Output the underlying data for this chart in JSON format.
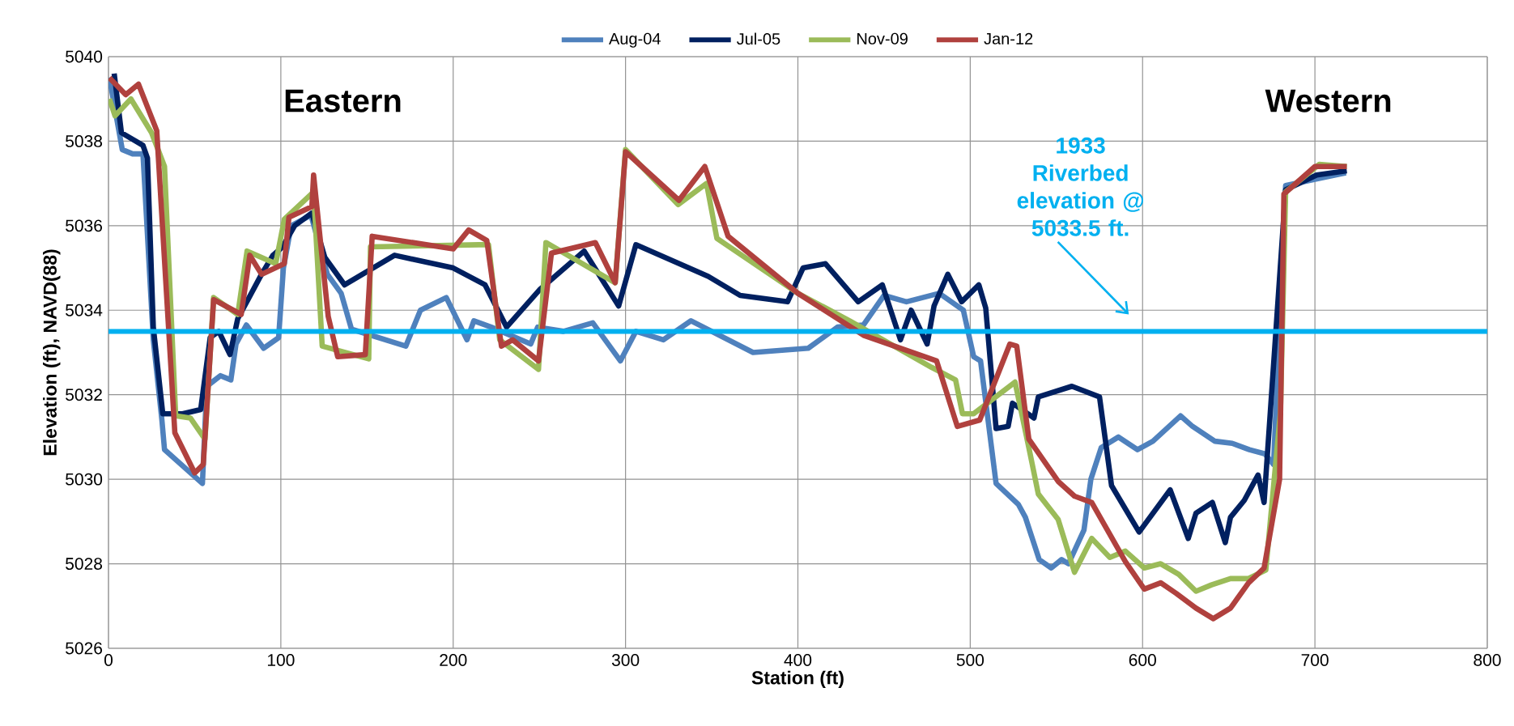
{
  "chart_data": {
    "type": "line",
    "xlabel": "Station (ft)",
    "ylabel": "Elevation (ft), NAVD(88)",
    "xlim": [
      0,
      800
    ],
    "xticks": [
      0,
      100,
      200,
      300,
      400,
      500,
      600,
      700,
      800
    ],
    "ylim": [
      5026,
      5040
    ],
    "yticks": [
      5026,
      5028,
      5030,
      5032,
      5034,
      5036,
      5038,
      5040
    ],
    "grid": true,
    "legend": "top",
    "marker": "none",
    "line_style": "solid",
    "annotations": [
      "Eastern",
      "Western"
    ],
    "ref_lines": [
      {
        "axis": "y",
        "value": 5033.5,
        "label": "1933 Riverbed elevation @ 5033.5 ft.",
        "color": "#00b0f0"
      }
    ],
    "series": [
      {
        "name": "Aug-04",
        "color": "#4f81bd",
        "x": [
          0,
          1.4,
          8,
          14,
          20,
          26,
          31,
          32.5,
          54.5,
          57,
          65,
          71,
          74,
          80,
          90,
          98.7,
          101.5,
          106,
          117.5,
          127,
          135,
          141,
          172.5,
          181,
          196,
          208,
          212,
          222,
          245,
          249,
          264,
          281,
          297,
          306,
          322,
          338,
          374,
          406,
          423,
          438,
          450,
          463,
          482,
          496,
          502,
          506,
          515,
          528,
          532,
          540,
          547,
          553,
          557,
          566,
          570,
          576,
          586,
          597,
          606,
          622,
          629,
          642,
          652,
          662,
          671,
          676,
          683,
          700,
          718
        ],
        "values": [
          5039.5,
          5039.3,
          5037.8,
          5037.7,
          5037.7,
          5033.3,
          5031.4,
          5030.7,
          5029.9,
          5032.2,
          5032.45,
          5032.35,
          5033.2,
          5033.65,
          5033.1,
          5033.35,
          5035.0,
          5036.0,
          5036.25,
          5034.85,
          5034.4,
          5033.55,
          5033.15,
          5034.0,
          5034.3,
          5033.3,
          5033.75,
          5033.6,
          5033.2,
          5033.6,
          5033.5,
          5033.7,
          5032.8,
          5033.5,
          5033.3,
          5033.75,
          5033.0,
          5033.1,
          5033.6,
          5033.65,
          5034.35,
          5034.2,
          5034.4,
          5034.0,
          5032.9,
          5032.8,
          5029.9,
          5029.4,
          5029.1,
          5028.1,
          5027.9,
          5028.1,
          5028.0,
          5028.8,
          5030.0,
          5030.75,
          5031.0,
          5030.7,
          5030.9,
          5031.5,
          5031.25,
          5030.9,
          5030.85,
          5030.7,
          5030.6,
          5030.35,
          5036.95,
          5037.1,
          5037.25
        ]
      },
      {
        "name": "Jul-05",
        "color": "#002060",
        "x": [
          3.3,
          7.5,
          20,
          22.6,
          26,
          31.5,
          43,
          53.5,
          59,
          64,
          70.5,
          75,
          80.4,
          88.8,
          95.4,
          101,
          108,
          118,
          125.5,
          137,
          166,
          200,
          218.5,
          231,
          250.5,
          276,
          296,
          306,
          348,
          366.5,
          394,
          403,
          416,
          435,
          449,
          459.5,
          465.7,
          475,
          479,
          487,
          495,
          505,
          509,
          515,
          522,
          524.5,
          537,
          539.5,
          559,
          575,
          582,
          598,
          616,
          626.5,
          631,
          640.5,
          648,
          651,
          659,
          667,
          670.5,
          679.5,
          683,
          701,
          718.5
        ],
        "values": [
          5039.6,
          5038.2,
          5037.9,
          5037.6,
          5033.6,
          5031.55,
          5031.55,
          5031.65,
          5033.35,
          5033.5,
          5032.95,
          5033.8,
          null,
          5034.85,
          5035.3,
          5035.5,
          5036.0,
          5036.3,
          5035.25,
          5034.6,
          5035.3,
          5035.0,
          5034.6,
          5033.6,
          5034.5,
          5035.4,
          5034.1,
          5035.55,
          5034.8,
          5034.35,
          5034.2,
          5035.0,
          5035.1,
          5034.2,
          5034.6,
          5033.3,
          5034.0,
          5033.2,
          5034.1,
          5034.85,
          5034.2,
          5034.6,
          5034.05,
          5031.2,
          5031.25,
          5031.8,
          5031.45,
          5031.95,
          5032.2,
          5031.95,
          5029.85,
          5028.75,
          5029.75,
          5028.6,
          5029.2,
          5029.45,
          5028.5,
          5029.1,
          5029.5,
          5030.1,
          5029.45,
          null,
          5036.85,
          5037.2,
          5037.3
        ]
      },
      {
        "name": "Nov-09",
        "color": "#9bbb59",
        "x": [
          0.5,
          3.8,
          13,
          25,
          32.5,
          39,
          47.5,
          56,
          61,
          75,
          80.4,
          97,
          102,
          119,
          124,
          151,
          152,
          215,
          220.5,
          227,
          249.5,
          253.8,
          294,
          300,
          330.5,
          347,
          353,
          400,
          430,
          477.5,
          491.5,
          495.5,
          502,
          526,
          534,
          539.5,
          551,
          560.5,
          570.5,
          581,
          590,
          601,
          610.5,
          621,
          631,
          640,
          651,
          661.5,
          671.5,
          680,
          683,
          702.5,
          718.5
        ],
        "values": [
          5039.0,
          5038.6,
          5039.0,
          5038.2,
          5037.4,
          5031.5,
          5031.45,
          5030.95,
          5034.3,
          5033.9,
          5035.4,
          5035.1,
          5036.15,
          5036.8,
          5033.15,
          5032.85,
          5035.5,
          5035.55,
          5035.55,
          5033.3,
          5032.6,
          5035.6,
          5034.65,
          5037.8,
          5036.5,
          5037.0,
          5035.7,
          5034.4,
          5033.75,
          5032.65,
          5032.35,
          5031.55,
          5031.55,
          5032.3,
          5030.75,
          5029.65,
          5029.05,
          5027.8,
          5028.6,
          5028.15,
          5028.3,
          5027.9,
          5028.0,
          5027.75,
          5027.35,
          5027.5,
          5027.65,
          5027.65,
          5027.85,
          5031.6,
          5036.8,
          5037.45,
          5037.4
        ]
      },
      {
        "name": "Jan-12",
        "color": "#b0413e",
        "x": [
          0.5,
          10,
          17.4,
          28,
          38.5,
          50,
          55,
          61,
          77,
          82,
          88.8,
          102,
          104.7,
          118,
          119,
          127.5,
          133,
          149,
          153,
          200,
          209,
          219.5,
          228,
          234.5,
          249.5,
          257,
          282.5,
          294,
          300,
          331,
          346,
          359.5,
          400,
          438.5,
          480.5,
          492.5,
          505.5,
          523,
          527,
          534,
          551,
          560.5,
          570.5,
          590,
          601,
          610.5,
          619.5,
          631,
          641,
          651,
          661.5,
          670.5,
          679.5,
          682,
          700,
          718.5
        ],
        "values": [
          5039.5,
          5039.1,
          5039.35,
          5038.25,
          5031.1,
          5030.15,
          5030.35,
          5034.25,
          5033.9,
          5035.3,
          5034.85,
          5035.1,
          5036.2,
          5036.45,
          5037.2,
          5033.85,
          5032.9,
          5032.95,
          5035.75,
          5035.45,
          5035.9,
          5035.65,
          5033.15,
          5033.3,
          5032.8,
          5035.35,
          5035.6,
          5034.65,
          5037.75,
          5036.6,
          5037.4,
          5035.75,
          5034.4,
          5033.4,
          5032.8,
          5031.25,
          5031.4,
          5033.2,
          5033.15,
          5030.95,
          5029.95,
          5029.6,
          5029.45,
          5028.05,
          5027.4,
          5027.55,
          5027.3,
          5026.95,
          5026.7,
          5026.95,
          5027.55,
          5027.9,
          5030.0,
          5036.75,
          5037.4,
          5037.4
        ]
      }
    ]
  }
}
